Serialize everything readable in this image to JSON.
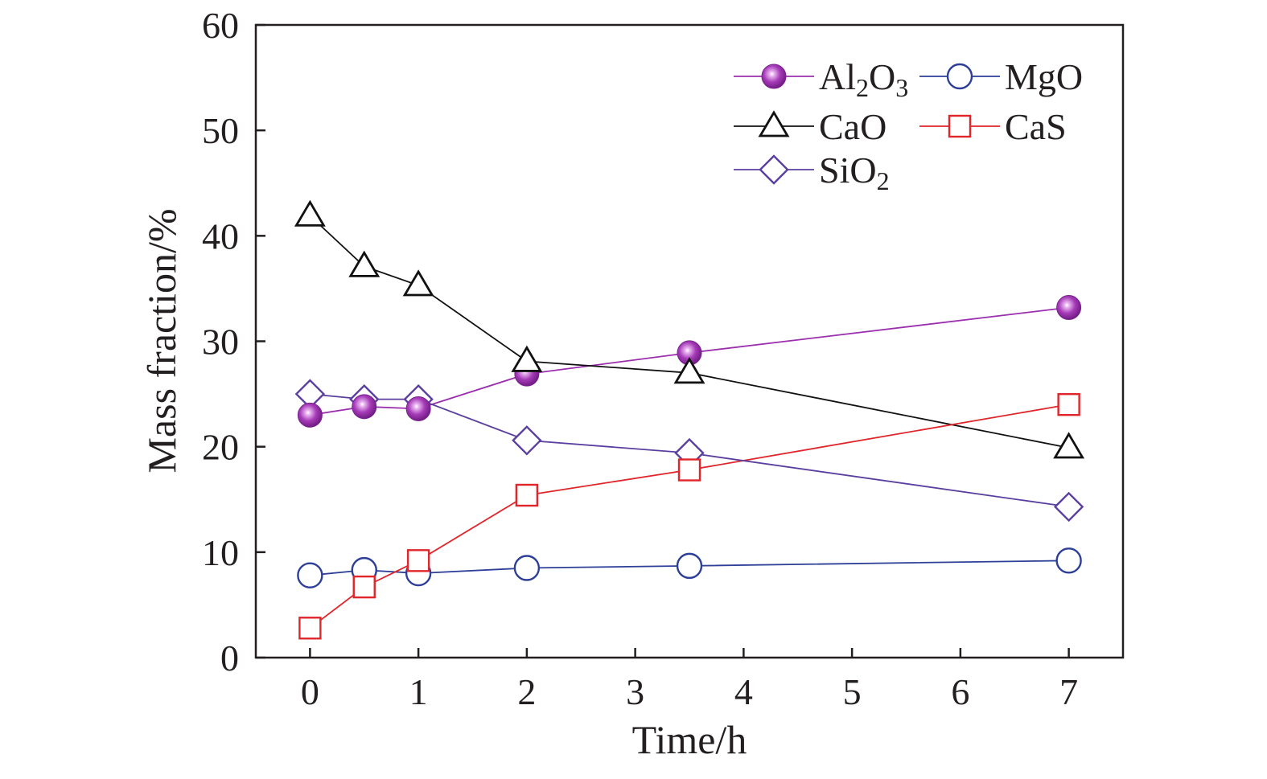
{
  "chart_data": {
    "type": "line",
    "xlabel": "Time/h",
    "ylabel": "Mass fraction/%",
    "xlim": [
      -0.5,
      7.5
    ],
    "ylim": [
      0,
      60
    ],
    "xticks": [
      "0",
      "1",
      "2",
      "3",
      "4",
      "5",
      "6",
      "7"
    ],
    "yticks": [
      "0",
      "10",
      "20",
      "30",
      "40",
      "50",
      "60"
    ],
    "grid": false,
    "legend_position": "top-right",
    "x": [
      0,
      0.5,
      1,
      2,
      3.5,
      7
    ],
    "series": [
      {
        "name": "Al₂O₃",
        "label_main": "Al",
        "label_sub1": "2",
        "label_mid": "O",
        "label_sub2": "3",
        "marker": "filled-sphere",
        "color": "#9b2fae",
        "values": [
          23.0,
          23.8,
          23.6,
          26.9,
          28.9,
          33.2
        ]
      },
      {
        "name": "MgO",
        "label_main": "MgO",
        "marker": "open-circle",
        "color": "#2e3f98",
        "values": [
          7.8,
          8.3,
          8.0,
          8.5,
          8.7,
          9.2
        ]
      },
      {
        "name": "CaO",
        "label_main": "CaO",
        "marker": "open-triangle",
        "color": "#111111",
        "values": [
          41.9,
          37.1,
          35.3,
          28.1,
          27.0,
          19.9
        ]
      },
      {
        "name": "CaS",
        "label_main": "CaS",
        "marker": "open-square",
        "color": "#e0262a",
        "values": [
          2.8,
          6.7,
          9.2,
          15.4,
          17.8,
          24.0
        ]
      },
      {
        "name": "SiO₂",
        "label_main": "Si",
        "label_mid": "O",
        "label_sub1": "2",
        "marker": "open-diamond",
        "color": "#5a3fa0",
        "values": [
          25.0,
          24.5,
          24.5,
          20.6,
          19.4,
          14.3
        ]
      }
    ]
  }
}
